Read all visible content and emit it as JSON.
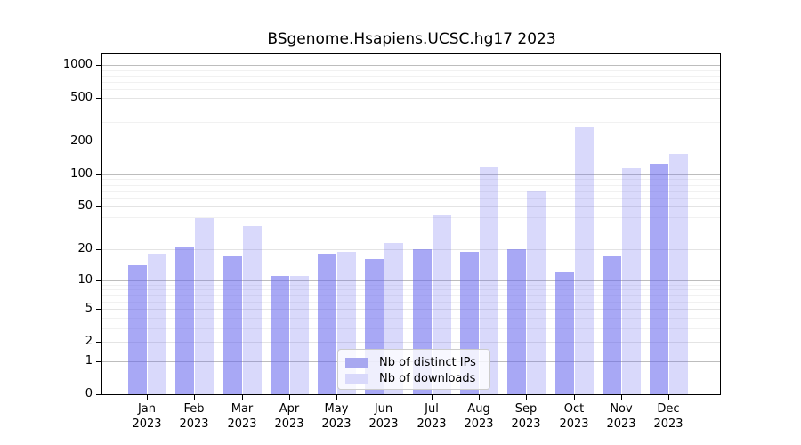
{
  "title": "BSgenome.Hsapiens.UCSC.hg17 2023",
  "legend": {
    "items": [
      {
        "label": "Nb of distinct IPs",
        "color": "#a8a8f0"
      },
      {
        "label": "Nb of downloads",
        "color": "#d9d9fb"
      }
    ]
  },
  "colors": {
    "bar_ips": "rgba(102,102,238,0.57)",
    "bar_downloads": "rgba(102,102,238,0.25)",
    "grid_major": "#bdbdbd",
    "grid_tick": "#e4e4e4",
    "grid_minor": "#f1f1f1",
    "axis": "#000000"
  },
  "chart_data": {
    "type": "bar",
    "title": "BSgenome.Hsapiens.UCSC.hg17 2023",
    "categories": [
      "Jan",
      "Feb",
      "Mar",
      "Apr",
      "May",
      "Jun",
      "Jul",
      "Aug",
      "Sep",
      "Oct",
      "Nov",
      "Dec"
    ],
    "year": "2023",
    "series": [
      {
        "name": "Nb of distinct IPs",
        "values": [
          14,
          21,
          17,
          11,
          18,
          16,
          20,
          19,
          20,
          12,
          17,
          125
        ]
      },
      {
        "name": "Nb of downloads",
        "values": [
          18,
          39,
          33,
          11,
          19,
          23,
          42,
          116,
          70,
          270,
          114,
          155
        ]
      }
    ],
    "y_ticks": [
      0,
      1,
      2,
      5,
      10,
      20,
      50,
      100,
      200,
      500,
      1000
    ],
    "y_major_ticks": [
      1,
      10,
      100,
      1000
    ],
    "ylim": [
      0,
      1000
    ],
    "y_scale": "log10(value+1)",
    "grid": true,
    "legend_position": "bottom-center",
    "xlabel": "",
    "ylabel": ""
  }
}
